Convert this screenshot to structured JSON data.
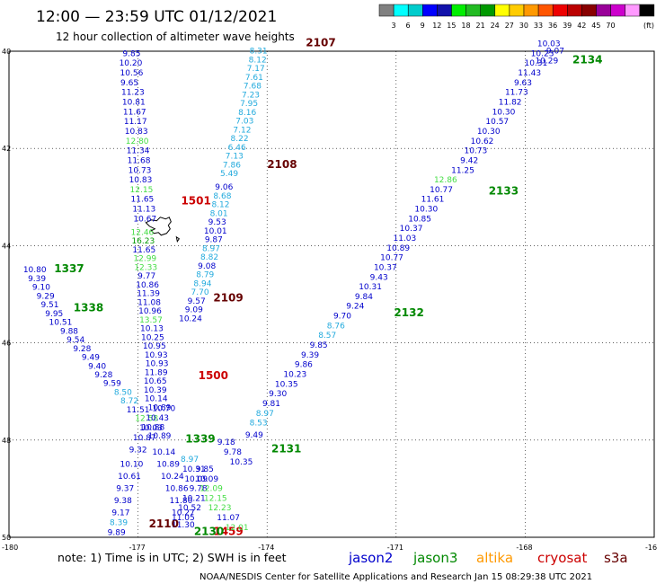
{
  "header": {
    "title": "12:00  —  23:59  UTC  01/12/2021",
    "subtitle": "12 hour collection of altimeter wave heights"
  },
  "colorbar": {
    "unit": "(ft)",
    "colors": [
      "#808080",
      "#00ffff",
      "#00cccc",
      "#0000ff",
      "#1111aa",
      "#00ee00",
      "#22bb22",
      "#009900",
      "#ffff00",
      "#ffcc00",
      "#ff9900",
      "#ff5500",
      "#ee0000",
      "#bb0000",
      "#880000",
      "#990099",
      "#cc00cc",
      "#ff99ff",
      "#000000"
    ],
    "labels": [
      "3",
      "6",
      "9",
      "12",
      "15",
      "18",
      "21",
      "24",
      "27",
      "30",
      "33",
      "36",
      "39",
      "42",
      "45",
      "70"
    ]
  },
  "axes": {
    "lon_ticks": [
      "-180",
      "-177",
      "-174",
      "-171",
      "-168",
      "-16"
    ],
    "lat_ticks": [
      "40",
      "42",
      "44",
      "46",
      "48",
      "50"
    ],
    "lon_range": [
      -180,
      -165
    ],
    "lat_range": [
      40,
      50
    ]
  },
  "colors": {
    "jason2": "#0000cc",
    "jason3": "#008800",
    "altika": "#ff9900",
    "cryosat": "#cc0000",
    "s3a": "#660000",
    "low": "#22aadd",
    "mid": "#44dd44",
    "high": "#009900",
    "coast": "#000000"
  },
  "tracks": [
    {
      "id": "2107",
      "time": "2107",
      "time_color": "#660000",
      "time_pos": [
        -173.1,
        39.9
      ],
      "color": "#22aadd",
      "points": [
        [
          -174.2,
          40.05,
          "8.31"
        ],
        [
          -174.22,
          40.23,
          "8.12"
        ],
        [
          -174.26,
          40.41,
          "7.17"
        ],
        [
          -174.3,
          40.59,
          "7.61"
        ],
        [
          -174.34,
          40.77,
          "7.68"
        ],
        [
          -174.38,
          40.95,
          "7.23"
        ],
        [
          -174.42,
          41.13,
          "7.95"
        ],
        [
          -174.46,
          41.31,
          "8.16"
        ],
        [
          -174.52,
          41.49,
          "7.03"
        ],
        [
          -174.58,
          41.67,
          "7.12"
        ],
        [
          -174.64,
          41.85,
          "8.22"
        ],
        [
          -174.7,
          42.03,
          "6.46"
        ],
        [
          -174.76,
          42.21,
          "7.13"
        ],
        [
          -174.82,
          42.39,
          "7.86"
        ],
        [
          -174.88,
          42.57,
          "5.49"
        ]
      ]
    },
    {
      "id": "2108",
      "time": "2108",
      "time_color": "#660000",
      "time_pos": [
        -174.0,
        42.4
      ],
      "color": "#0000cc",
      "points": [
        [
          -175.0,
          42.85,
          "9.06"
        ],
        [
          -175.04,
          43.03,
          "8.68"
        ],
        [
          -175.08,
          43.21,
          "8.12"
        ],
        [
          -175.12,
          43.39,
          "8.01"
        ],
        [
          -175.16,
          43.57,
          "9.53"
        ],
        [
          -175.2,
          43.75,
          "10.01"
        ],
        [
          -175.24,
          43.93,
          "9.87"
        ],
        [
          -175.3,
          44.11,
          "8.97"
        ],
        [
          -175.34,
          44.29,
          "8.82"
        ],
        [
          -175.4,
          44.47,
          "9.08"
        ],
        [
          -175.44,
          44.65,
          "8.79"
        ],
        [
          -175.5,
          44.83,
          "8.94"
        ],
        [
          -175.56,
          45.01,
          "7.70"
        ],
        [
          -175.64,
          45.19,
          "9.57"
        ],
        [
          -175.7,
          45.37,
          "9.09"
        ],
        [
          -175.78,
          45.55,
          "10.24"
        ]
      ]
    },
    {
      "id": "2109",
      "time": "2109",
      "time_color": "#660000",
      "time_pos": [
        -175.25,
        45.15
      ],
      "color": "#0000cc",
      "points": []
    },
    {
      "id": "1501",
      "time": "1501",
      "time_color": "#cc0000",
      "time_pos": [
        -176.0,
        43.15
      ],
      "color": "#0000cc",
      "points": [
        [
          -177.15,
          40.1,
          "9.85"
        ],
        [
          -177.17,
          40.3,
          "10.20"
        ],
        [
          -177.15,
          40.5,
          "10.56"
        ],
        [
          -177.2,
          40.7,
          "9.65"
        ],
        [
          -177.12,
          40.9,
          "11.23"
        ],
        [
          -177.1,
          41.1,
          "10.81"
        ],
        [
          -177.08,
          41.3,
          "11.67"
        ],
        [
          -177.06,
          41.5,
          "11.17"
        ],
        [
          -177.04,
          41.7,
          "10.83"
        ],
        [
          -177.02,
          41.9,
          "12.80"
        ],
        [
          -177.0,
          42.1,
          "11.34"
        ],
        [
          -176.98,
          42.3,
          "11.68"
        ],
        [
          -176.96,
          42.5,
          "10.73"
        ],
        [
          -176.94,
          42.7,
          "10.83"
        ],
        [
          -176.92,
          42.9,
          "12.15"
        ],
        [
          -176.9,
          43.1,
          "11.65"
        ],
        [
          -176.86,
          43.3,
          "11.13"
        ],
        [
          -176.84,
          43.5,
          "10.67"
        ]
      ]
    },
    {
      "id": "1500",
      "time": "1500",
      "time_color": "#cc0000",
      "time_pos": [
        -175.6,
        46.75
      ],
      "color": "#0000cc",
      "points": [
        [
          -176.9,
          43.78,
          "12.46"
        ],
        [
          -176.88,
          43.96,
          "16.23"
        ],
        [
          -176.86,
          44.14,
          "11.65"
        ],
        [
          -176.84,
          44.32,
          "12.99"
        ],
        [
          -176.82,
          44.5,
          "12.33"
        ],
        [
          -176.8,
          44.68,
          "9.77"
        ],
        [
          -176.78,
          44.86,
          "10.86"
        ],
        [
          -176.76,
          45.04,
          "11.39"
        ],
        [
          -176.74,
          45.22,
          "11.08"
        ],
        [
          -176.72,
          45.4,
          "10.96"
        ],
        [
          -176.7,
          45.58,
          "13.57"
        ],
        [
          -176.68,
          45.76,
          "10.13"
        ],
        [
          -176.66,
          45.94,
          "10.25"
        ],
        [
          -176.62,
          46.12,
          "10.95"
        ],
        [
          -176.58,
          46.3,
          "10.93"
        ],
        [
          -176.56,
          46.48,
          "10.93"
        ],
        [
          -176.58,
          46.66,
          "11.89"
        ],
        [
          -176.6,
          46.84,
          "10.65"
        ],
        [
          -176.6,
          47.02,
          "10.39"
        ],
        [
          -176.58,
          47.2,
          "10.14"
        ],
        [
          -176.5,
          47.38,
          "10.89"
        ]
      ]
    },
    {
      "id": "1337",
      "time": "1337",
      "time_color": "#008800",
      "time_pos": [
        -178.95,
        44.55
      ],
      "color": "#0000cc",
      "points": [
        [
          -179.4,
          44.55,
          "10.80"
        ],
        [
          -179.35,
          44.73,
          "9.39"
        ],
        [
          -179.25,
          44.91,
          "9.10"
        ],
        [
          -179.15,
          45.09,
          "9.29"
        ],
        [
          -179.05,
          45.27,
          "9.51"
        ],
        [
          -178.95,
          45.45,
          "9.95"
        ],
        [
          -178.8,
          45.63,
          "10.51"
        ],
        [
          -178.6,
          45.81,
          "9.88"
        ],
        [
          -178.45,
          45.99,
          "9.54"
        ],
        [
          -178.3,
          46.17,
          "9.28"
        ],
        [
          -178.1,
          46.35,
          "9.49"
        ],
        [
          -177.95,
          46.53,
          "9.40"
        ],
        [
          -177.8,
          46.71,
          "9.28"
        ],
        [
          -177.6,
          46.89,
          "9.59"
        ],
        [
          -177.35,
          47.07,
          "8.50"
        ],
        [
          -177.2,
          47.25,
          "8.72"
        ],
        [
          -177.0,
          47.43,
          "11.51"
        ],
        [
          -176.8,
          47.61,
          "12.58"
        ],
        [
          -176.65,
          47.79,
          "10.88"
        ],
        [
          -176.5,
          47.97,
          "10.89"
        ]
      ]
    },
    {
      "id": "1338",
      "time": "1338",
      "time_color": "#008800",
      "time_pos": [
        -178.5,
        45.35
      ],
      "color": "#0000cc",
      "points": []
    },
    {
      "id": "1339",
      "time": "1339",
      "time_color": "#008800",
      "time_pos": [
        -175.9,
        48.05
      ],
      "color": "#0000cc",
      "points": [
        [
          -176.4,
          47.4,
          "10.70"
        ],
        [
          -176.55,
          47.6,
          "10.43"
        ],
        [
          -176.7,
          47.8,
          "10.03"
        ],
        [
          -176.85,
          48.0,
          "10.87"
        ],
        [
          -177.0,
          48.25,
          "9.32"
        ],
        [
          -177.15,
          48.55,
          "10.10"
        ],
        [
          -177.2,
          48.8,
          "10.61"
        ],
        [
          -177.3,
          49.05,
          "9.37"
        ],
        [
          -177.35,
          49.3,
          "9.38"
        ],
        [
          -177.4,
          49.55,
          "9.17"
        ],
        [
          -177.45,
          49.75,
          "8.39"
        ],
        [
          -177.5,
          49.95,
          "9.89"
        ]
      ]
    },
    {
      "id": "2110",
      "time": "2110",
      "time_color": "#660000",
      "time_pos": [
        -176.75,
        49.8
      ],
      "color": "#0000cc",
      "points": [
        [
          -176.4,
          48.3,
          "10.14"
        ],
        [
          -176.3,
          48.55,
          "10.89"
        ],
        [
          -176.2,
          48.8,
          "10.24"
        ],
        [
          -176.1,
          49.05,
          "10.86"
        ],
        [
          -176.0,
          49.3,
          "11.80"
        ],
        [
          -175.95,
          49.55,
          "10.27"
        ],
        [
          -175.95,
          49.8,
          "11.30"
        ]
      ]
    },
    {
      "id": "1459",
      "time": "1459",
      "time_color": "#cc0000",
      "time_pos": [
        -175.25,
        49.95
      ],
      "color": "#0000cc",
      "points": [
        [
          -175.8,
          48.45,
          "8.97"
        ],
        [
          -175.7,
          48.65,
          "10.31"
        ],
        [
          -175.65,
          48.85,
          "10.09"
        ],
        [
          -175.6,
          49.05,
          "9.78"
        ],
        [
          -175.7,
          49.25,
          "10.21"
        ],
        [
          -175.8,
          49.45,
          "10.52"
        ],
        [
          -175.95,
          49.65,
          "11.05"
        ]
      ]
    },
    {
      "id": "2130",
      "time": "2130",
      "time_color": "#008800",
      "time_pos": [
        -175.7,
        49.95
      ],
      "color": "#0000cc",
      "points": [
        [
          -175.45,
          48.65,
          "9.85"
        ],
        [
          -175.4,
          48.85,
          "10.09"
        ],
        [
          -175.3,
          49.05,
          "12.09"
        ],
        [
          -175.2,
          49.25,
          "12.15"
        ],
        [
          -175.1,
          49.45,
          "12.23"
        ],
        [
          -174.9,
          49.65,
          "11.07"
        ],
        [
          -174.7,
          49.85,
          "12.01"
        ]
      ]
    },
    {
      "id": "2131",
      "time": "2131",
      "time_color": "#008800",
      "time_pos": [
        -173.9,
        48.25
      ],
      "color": "#0000cc",
      "points": [
        [
          -174.6,
          48.5,
          "10.35"
        ],
        [
          -174.8,
          48.3,
          "9.78"
        ],
        [
          -174.95,
          48.1,
          "9.18"
        ],
        [
          -174.3,
          47.95,
          "9.49"
        ],
        [
          -174.2,
          47.7,
          "8.53"
        ],
        [
          -174.05,
          47.5,
          "8.97"
        ],
        [
          -173.9,
          47.3,
          "9.81"
        ],
        [
          -173.75,
          47.1,
          "9.30"
        ],
        [
          -173.55,
          46.9,
          "10.35"
        ],
        [
          -173.35,
          46.7,
          "10.23"
        ],
        [
          -173.15,
          46.5,
          "9.86"
        ],
        [
          -173.0,
          46.3,
          "9.39"
        ],
        [
          -172.8,
          46.1,
          "9.85"
        ],
        [
          -172.6,
          45.9,
          "8.57"
        ],
        [
          -172.4,
          45.7,
          "8.76"
        ],
        [
          -172.25,
          45.5,
          "9.70"
        ]
      ]
    },
    {
      "id": "2132",
      "time": "2132",
      "time_color": "#008800",
      "time_pos": [
        -171.05,
        45.45
      ],
      "color": "#0000cc",
      "points": [
        [
          -171.95,
          45.3,
          "9.24"
        ],
        [
          -171.75,
          45.1,
          "9.84"
        ],
        [
          -171.6,
          44.9,
          "10.31"
        ],
        [
          -171.4,
          44.7,
          "9.43"
        ],
        [
          -171.25,
          44.5,
          "10.37"
        ],
        [
          -171.1,
          44.3,
          "10.77"
        ],
        [
          -170.95,
          44.1,
          "10.89"
        ],
        [
          -170.8,
          43.9,
          "11.03"
        ],
        [
          -170.65,
          43.7,
          "10.37"
        ],
        [
          -170.45,
          43.5,
          "10.85"
        ],
        [
          -170.3,
          43.3,
          "10.30"
        ],
        [
          -170.15,
          43.1,
          "11.61"
        ],
        [
          -169.95,
          42.9,
          "10.77"
        ],
        [
          -169.85,
          42.7,
          "12.86"
        ]
      ]
    },
    {
      "id": "2133",
      "time": "2133",
      "time_color": "#008800",
      "time_pos": [
        -168.85,
        42.95
      ],
      "color": "#0000cc",
      "points": [
        [
          -169.45,
          42.5,
          "11.25"
        ],
        [
          -169.3,
          42.3,
          "9.42"
        ],
        [
          -169.15,
          42.1,
          "10.73"
        ],
        [
          -169.0,
          41.9,
          "10.62"
        ],
        [
          -168.85,
          41.7,
          "10.30"
        ],
        [
          -168.65,
          41.5,
          "10.57"
        ],
        [
          -168.5,
          41.3,
          "10.30"
        ],
        [
          -168.35,
          41.1,
          "11.82"
        ],
        [
          -168.2,
          40.9,
          "11.73"
        ],
        [
          -168.05,
          40.7,
          "9.63"
        ],
        [
          -167.9,
          40.5,
          "11.43"
        ],
        [
          -167.75,
          40.3,
          "10.31"
        ],
        [
          -167.6,
          40.1,
          "10.23"
        ],
        [
          -167.45,
          39.9,
          "10.03"
        ]
      ]
    },
    {
      "id": "2134",
      "time": "2134",
      "time_color": "#008800",
      "time_pos": [
        -166.9,
        40.25
      ],
      "color": "#0000cc",
      "points": [
        [
          -167.5,
          40.25,
          "10.29"
        ],
        [
          -167.3,
          40.05,
          "9.07"
        ]
      ]
    }
  ],
  "footer": {
    "note": "note:  1) Time is in UTC;  2) SWH is in feet",
    "legend": [
      "jason2",
      "jason3",
      "altika",
      "cryosat",
      "s3a"
    ],
    "credit": "NOAA/NESDIS Center for Satellite Applications and Research     Jan 15 08:29:38 UTC 2021"
  }
}
